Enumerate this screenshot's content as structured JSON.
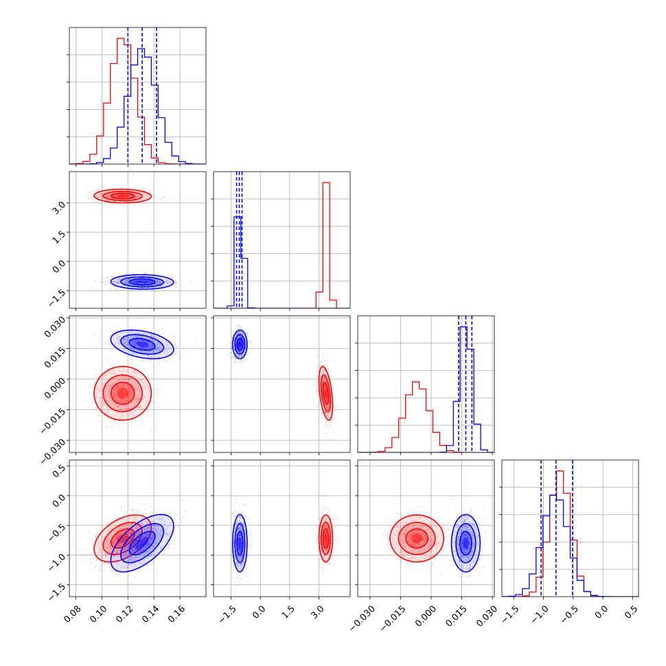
{
  "colors": {
    "red": "#ff0000",
    "blue": "#0000ff",
    "grid": "#b0b0b0",
    "axis": "#000000"
  },
  "chart_data": {
    "type": "corner",
    "grid": true,
    "parameters": [
      {
        "range": [
          0.075,
          0.18
        ],
        "ticks": [
          0.08,
          0.1,
          0.12,
          0.14,
          0.16
        ],
        "tick_labels": [
          "0.08",
          "0.10",
          "0.12",
          "0.14",
          "0.16"
        ]
      },
      {
        "range": [
          -2.4,
          4.6
        ],
        "ticks": [
          -1.5,
          0.0,
          1.5,
          3.0
        ],
        "tick_labels": [
          "−1.5",
          "0.0",
          "1.5",
          "3.0"
        ]
      },
      {
        "range": [
          -0.036,
          0.031
        ],
        "ticks": [
          -0.03,
          -0.015,
          0.0,
          0.015,
          0.03
        ],
        "tick_labels": [
          "−0.030",
          "−0.015",
          "0.000",
          "0.015",
          "0.030"
        ]
      },
      {
        "range": [
          -1.7,
          0.6
        ],
        "ticks": [
          -1.5,
          -1.0,
          -0.5,
          0.0,
          0.5
        ],
        "tick_labels": [
          "−1.5",
          "−1.0",
          "−0.5",
          "0.0",
          "0.5"
        ]
      }
    ],
    "series": [
      {
        "name": "red",
        "color": "#ff0000",
        "mean": [
          0.116,
          3.35,
          -0.007,
          -0.72
        ],
        "std": [
          0.01,
          0.16,
          0.006,
          0.18
        ],
        "corr": [
          [
            0,
            1,
            -0.05
          ],
          [
            0,
            2,
            0.0
          ],
          [
            0,
            3,
            0.45
          ],
          [
            1,
            2,
            -0.45
          ],
          [
            1,
            3,
            0.0
          ],
          [
            2,
            3,
            0.0
          ]
        ]
      },
      {
        "name": "blue",
        "color": "#0000ff",
        "mean": [
          0.131,
          -1.05,
          0.017,
          -0.8
        ],
        "std": [
          0.011,
          0.17,
          0.0032,
          0.22
        ],
        "corr": [
          [
            0,
            1,
            -0.05
          ],
          [
            0,
            2,
            -0.35
          ],
          [
            0,
            3,
            0.6
          ],
          [
            1,
            2,
            0.0
          ],
          [
            1,
            3,
            0.0
          ],
          [
            2,
            3,
            0.0
          ]
        ]
      }
    ],
    "quantile_lines": [
      {
        "param": 0,
        "values": [
          0.12,
          0.131,
          0.142
        ]
      },
      {
        "param": 1,
        "values": [
          -1.22,
          -1.08,
          -0.94
        ]
      },
      {
        "param": 2,
        "values": [
          0.0135,
          0.017,
          0.02
        ]
      },
      {
        "param": 3,
        "values": [
          -1.04,
          -0.79,
          -0.51
        ]
      }
    ]
  }
}
